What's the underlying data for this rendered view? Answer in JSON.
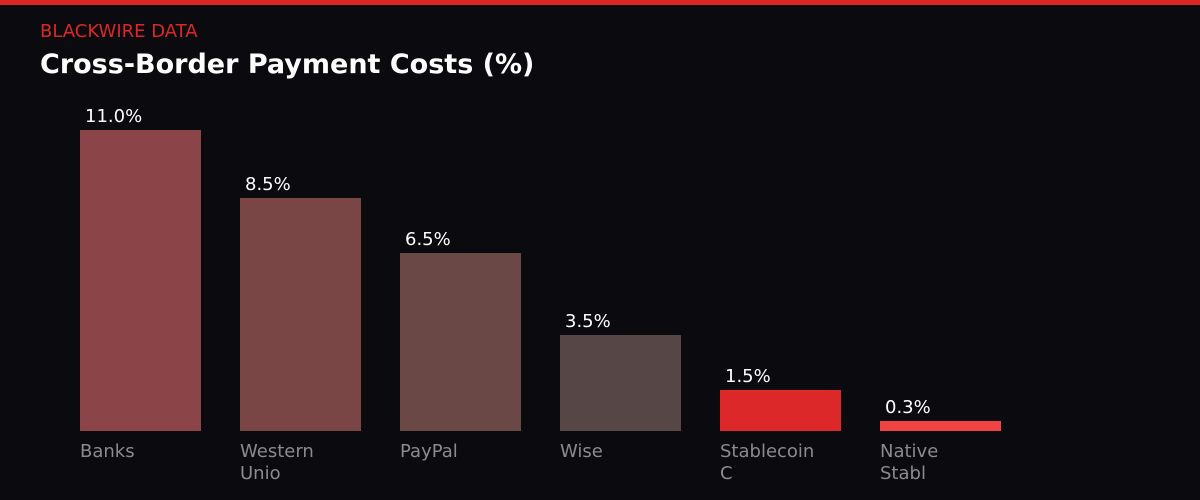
{
  "header": {
    "brand": "BLACKWIRE DATA",
    "title": "Cross-Border Payment Costs (%)"
  },
  "colors": {
    "accent": "#dc2626",
    "background": "#0b0b0f"
  },
  "bars": [
    {
      "label_line1": "Banks",
      "label_line2": "",
      "value_label": "11.0%",
      "value": 11.0,
      "color": "#8b4548"
    },
    {
      "label_line1": "Western",
      "label_line2": "Unio",
      "value_label": "8.5%",
      "value": 8.5,
      "color": "#7a4645"
    },
    {
      "label_line1": "PayPal",
      "label_line2": "",
      "value_label": "6.5%",
      "value": 6.5,
      "color": "#6a4846"
    },
    {
      "label_line1": "Wise",
      "label_line2": "",
      "value_label": "3.5%",
      "value": 3.5,
      "color": "#574646"
    },
    {
      "label_line1": "Stablecoin",
      "label_line2": "C",
      "value_label": "1.5%",
      "value": 1.5,
      "color": "#dc2828"
    },
    {
      "label_line1": "Native",
      "label_line2": "Stabl",
      "value_label": "0.3%",
      "value": 0.3,
      "color": "#f04444"
    }
  ],
  "chart_data": {
    "type": "bar",
    "title": "Cross-Border Payment Costs (%)",
    "subtitle": "BLACKWIRE DATA",
    "categories": [
      "Banks",
      "Western Unio",
      "PayPal",
      "Wise",
      "Stablecoin C",
      "Native Stabl"
    ],
    "values": [
      11.0,
      8.5,
      6.5,
      3.5,
      1.5,
      0.3
    ],
    "data_labels": [
      "11.0%",
      "8.5%",
      "6.5%",
      "3.5%",
      "1.5%",
      "0.3%"
    ],
    "xlabel": "",
    "ylabel": "",
    "ylim": [
      0,
      11.0
    ],
    "grid": false,
    "legend": "none"
  }
}
